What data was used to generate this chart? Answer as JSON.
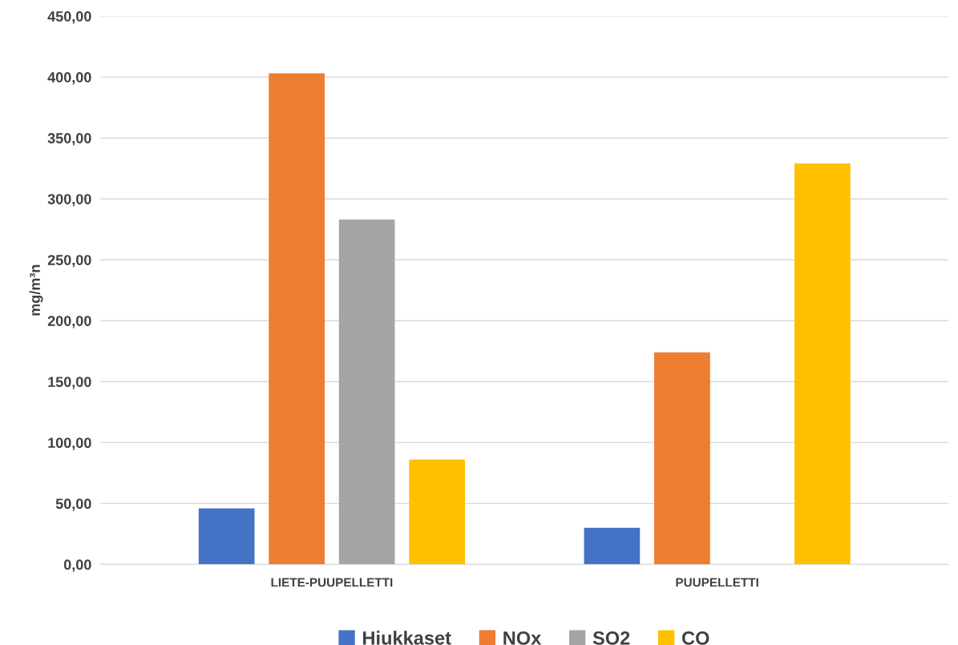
{
  "chart_data": {
    "type": "bar",
    "ylabel": "mg/m³n",
    "categories": [
      "LIETE-PUUPELLETTI",
      "PUUPELLETTI"
    ],
    "series": [
      {
        "name": "Hiukkaset",
        "color": "#4472c4",
        "values": [
          46,
          30
        ]
      },
      {
        "name": "NOx",
        "color": "#ed7d31",
        "values": [
          403,
          174
        ]
      },
      {
        "name": "SO2",
        "color": "#a5a5a5",
        "values": [
          283,
          0
        ]
      },
      {
        "name": "CO",
        "color": "#ffc000",
        "values": [
          86,
          329
        ]
      }
    ],
    "ylim": [
      0,
      450
    ],
    "yticks": [
      {
        "value": 0,
        "label": "0,00"
      },
      {
        "value": 50,
        "label": "50,00"
      },
      {
        "value": 100,
        "label": "100,00"
      },
      {
        "value": 150,
        "label": "150,00"
      },
      {
        "value": 200,
        "label": "200,00"
      },
      {
        "value": 250,
        "label": "250,00"
      },
      {
        "value": 300,
        "label": "300,00"
      },
      {
        "value": 350,
        "label": "350,00"
      },
      {
        "value": 400,
        "label": "400,00"
      },
      {
        "value": 450,
        "label": "450,00"
      }
    ],
    "grid": "y",
    "legend": "bottom"
  }
}
